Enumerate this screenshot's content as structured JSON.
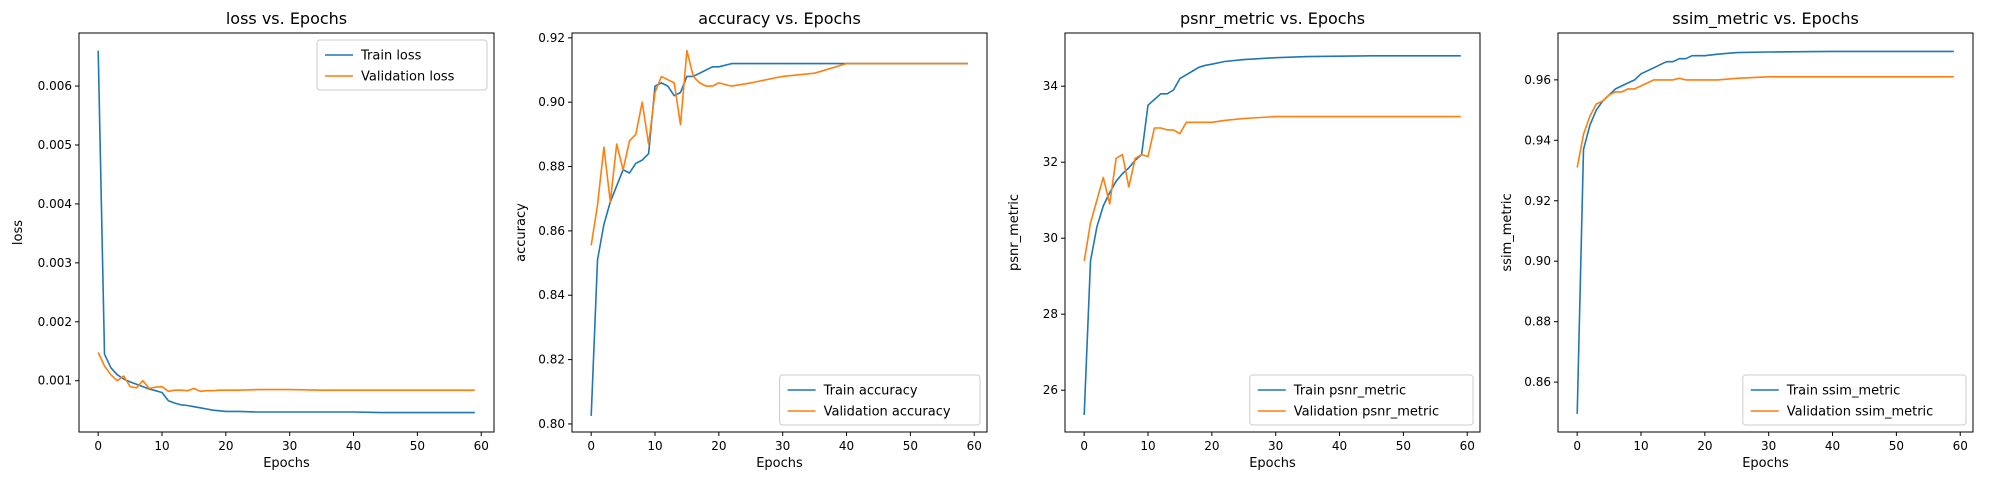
{
  "chart_data": [
    {
      "type": "line",
      "title": "loss vs. Epochs",
      "xlabel": "Epochs",
      "ylabel": "loss",
      "xlim": [
        -3,
        62
      ],
      "ylim": [
        0.00013,
        0.0069
      ],
      "xticks": [
        0,
        10,
        20,
        30,
        40,
        50,
        60
      ],
      "yticks": [
        0.001,
        0.002,
        0.003,
        0.004,
        0.005,
        0.006
      ],
      "ytick_labels": [
        "0.001",
        "0.002",
        "0.003",
        "0.004",
        "0.005",
        "0.006"
      ],
      "legend_loc": "top-right",
      "grid": false,
      "series": [
        {
          "name": "Train loss",
          "color": "#1f77b4",
          "x": [
            0,
            1,
            2,
            3,
            4,
            5,
            6,
            7,
            8,
            9,
            10,
            11,
            12,
            13,
            14,
            15,
            16,
            17,
            18,
            19,
            20,
            22,
            25,
            30,
            35,
            40,
            45,
            50,
            55,
            59
          ],
          "y": [
            0.0066,
            0.00145,
            0.00122,
            0.0011,
            0.00103,
            0.00098,
            0.00094,
            0.0009,
            0.00086,
            0.00083,
            0.0008,
            0.00066,
            0.00062,
            0.00059,
            0.00058,
            0.00056,
            0.00054,
            0.00052,
            0.0005,
            0.00049,
            0.00048,
            0.00048,
            0.00047,
            0.00047,
            0.00047,
            0.00047,
            0.00046,
            0.00046,
            0.00046,
            0.00046
          ]
        },
        {
          "name": "Validation loss",
          "color": "#ff7f0e",
          "x": [
            0,
            1,
            2,
            3,
            4,
            5,
            6,
            7,
            8,
            9,
            10,
            11,
            12,
            13,
            14,
            15,
            16,
            17,
            18,
            19,
            20,
            22,
            25,
            30,
            35,
            40,
            45,
            50,
            55,
            59
          ],
          "y": [
            0.00148,
            0.00125,
            0.0011,
            0.001,
            0.00108,
            0.0009,
            0.00088,
            0.001,
            0.00087,
            0.00089,
            0.0009,
            0.00082,
            0.00084,
            0.00084,
            0.00083,
            0.00087,
            0.00082,
            0.00083,
            0.00083,
            0.00084,
            0.00084,
            0.00084,
            0.00085,
            0.00085,
            0.00084,
            0.00084,
            0.00084,
            0.00084,
            0.00084,
            0.00084
          ]
        }
      ]
    },
    {
      "type": "line",
      "title": "accuracy vs. Epochs",
      "xlabel": "Epochs",
      "ylabel": "accuracy",
      "xlim": [
        -3,
        62
      ],
      "ylim": [
        0.7975,
        0.9215
      ],
      "xticks": [
        0,
        10,
        20,
        30,
        40,
        50,
        60
      ],
      "yticks": [
        0.8,
        0.82,
        0.84,
        0.86,
        0.88,
        0.9,
        0.92
      ],
      "ytick_labels": [
        "0.80",
        "0.82",
        "0.84",
        "0.86",
        "0.88",
        "0.90",
        "0.92"
      ],
      "legend_loc": "bottom-right",
      "grid": false,
      "series": [
        {
          "name": "Train accuracy",
          "color": "#1f77b4",
          "x": [
            0,
            1,
            2,
            3,
            4,
            5,
            6,
            7,
            8,
            9,
            10,
            11,
            12,
            13,
            14,
            15,
            16,
            17,
            18,
            19,
            20,
            22,
            25,
            30,
            35,
            40,
            45,
            50,
            55,
            59
          ],
          "y": [
            0.8025,
            0.851,
            0.862,
            0.869,
            0.874,
            0.879,
            0.878,
            0.881,
            0.882,
            0.884,
            0.905,
            0.906,
            0.905,
            0.902,
            0.903,
            0.908,
            0.908,
            0.909,
            0.91,
            0.911,
            0.911,
            0.912,
            0.912,
            0.912,
            0.912,
            0.912,
            0.912,
            0.912,
            0.912,
            0.912
          ]
        },
        {
          "name": "Validation accuracy",
          "color": "#ff7f0e",
          "x": [
            0,
            1,
            2,
            3,
            4,
            5,
            6,
            7,
            8,
            9,
            10,
            11,
            12,
            13,
            14,
            15,
            16,
            17,
            18,
            19,
            20,
            22,
            25,
            30,
            35,
            40,
            45,
            50,
            55,
            59
          ],
          "y": [
            0.8555,
            0.868,
            0.886,
            0.869,
            0.887,
            0.879,
            0.888,
            0.89,
            0.9,
            0.887,
            0.903,
            0.908,
            0.907,
            0.906,
            0.893,
            0.916,
            0.908,
            0.906,
            0.905,
            0.905,
            0.906,
            0.905,
            0.906,
            0.908,
            0.909,
            0.912,
            0.912,
            0.912,
            0.912,
            0.912
          ]
        }
      ]
    },
    {
      "type": "line",
      "title": "psnr_metric vs. Epochs",
      "xlabel": "Epochs",
      "ylabel": "psnr_metric",
      "xlim": [
        -3,
        62
      ],
      "ylim": [
        24.9,
        35.4
      ],
      "xticks": [
        0,
        10,
        20,
        30,
        40,
        50,
        60
      ],
      "yticks": [
        26,
        28,
        30,
        32,
        34
      ],
      "ytick_labels": [
        "26",
        "28",
        "30",
        "32",
        "34"
      ],
      "legend_loc": "bottom-right",
      "grid": false,
      "series": [
        {
          "name": "Train psnr_metric",
          "color": "#1f77b4",
          "x": [
            0,
            1,
            2,
            3,
            4,
            5,
            6,
            7,
            8,
            9,
            10,
            11,
            12,
            13,
            14,
            15,
            16,
            17,
            18,
            19,
            20,
            22,
            25,
            30,
            35,
            40,
            45,
            50,
            55,
            59
          ],
          "y": [
            25.35,
            29.4,
            30.3,
            30.85,
            31.2,
            31.5,
            31.7,
            31.85,
            32.05,
            32.2,
            33.5,
            33.65,
            33.8,
            33.8,
            33.9,
            34.2,
            34.3,
            34.4,
            34.5,
            34.55,
            34.58,
            34.65,
            34.7,
            34.75,
            34.78,
            34.79,
            34.8,
            34.8,
            34.8,
            34.8
          ]
        },
        {
          "name": "Validation psnr_metric",
          "color": "#ff7f0e",
          "x": [
            0,
            1,
            2,
            3,
            4,
            5,
            6,
            7,
            8,
            9,
            10,
            11,
            12,
            13,
            14,
            15,
            16,
            17,
            18,
            19,
            20,
            22,
            25,
            30,
            35,
            40,
            45,
            50,
            55,
            59
          ],
          "y": [
            29.4,
            30.4,
            31.0,
            31.6,
            30.9,
            32.1,
            32.2,
            31.35,
            32.1,
            32.2,
            32.15,
            32.9,
            32.9,
            32.85,
            32.85,
            32.75,
            33.05,
            33.05,
            33.05,
            33.05,
            33.05,
            33.1,
            33.15,
            33.2,
            33.2,
            33.2,
            33.2,
            33.2,
            33.2,
            33.2
          ]
        }
      ]
    },
    {
      "type": "line",
      "title": "ssim_metric vs. Epochs",
      "xlabel": "Epochs",
      "ylabel": "ssim_metric",
      "xlim": [
        -3,
        62
      ],
      "ylim": [
        0.8435,
        0.9755
      ],
      "xticks": [
        0,
        10,
        20,
        30,
        40,
        50,
        60
      ],
      "yticks": [
        0.86,
        0.88,
        0.9,
        0.92,
        0.94,
        0.96
      ],
      "ytick_labels": [
        "0.86",
        "0.88",
        "0.90",
        "0.92",
        "0.94",
        "0.96"
      ],
      "legend_loc": "bottom-right",
      "grid": false,
      "series": [
        {
          "name": "Train ssim_metric",
          "color": "#1f77b4",
          "x": [
            0,
            1,
            2,
            3,
            4,
            5,
            6,
            7,
            8,
            9,
            10,
            11,
            12,
            13,
            14,
            15,
            16,
            17,
            18,
            19,
            20,
            22,
            25,
            30,
            35,
            40,
            45,
            50,
            55,
            59
          ],
          "y": [
            0.8495,
            0.937,
            0.945,
            0.95,
            0.953,
            0.955,
            0.957,
            0.958,
            0.959,
            0.96,
            0.962,
            0.963,
            0.964,
            0.965,
            0.966,
            0.966,
            0.967,
            0.967,
            0.968,
            0.968,
            0.968,
            0.9685,
            0.969,
            0.9692,
            0.9693,
            0.9694,
            0.9694,
            0.9694,
            0.9694,
            0.9694
          ]
        },
        {
          "name": "Validation ssim_metric",
          "color": "#ff7f0e",
          "x": [
            0,
            1,
            2,
            3,
            4,
            5,
            6,
            7,
            8,
            9,
            10,
            11,
            12,
            13,
            14,
            15,
            16,
            17,
            18,
            19,
            20,
            22,
            25,
            30,
            35,
            40,
            45,
            50,
            55,
            59
          ],
          "y": [
            0.931,
            0.942,
            0.948,
            0.952,
            0.953,
            0.955,
            0.956,
            0.956,
            0.957,
            0.957,
            0.958,
            0.959,
            0.96,
            0.96,
            0.96,
            0.96,
            0.9605,
            0.96,
            0.96,
            0.96,
            0.96,
            0.96,
            0.9605,
            0.961,
            0.961,
            0.961,
            0.961,
            0.961,
            0.961,
            0.961
          ]
        }
      ]
    }
  ]
}
